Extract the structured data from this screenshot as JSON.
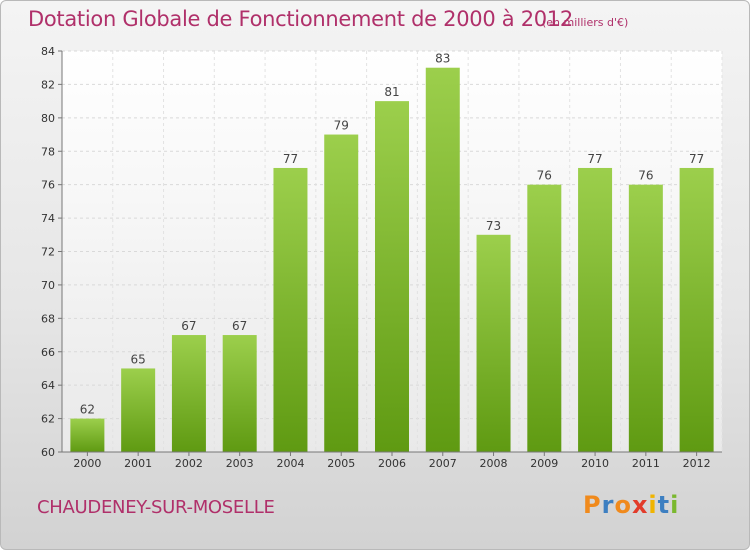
{
  "header": {
    "title": "Dotation Globale de Fonctionnement de 2000 à 2012",
    "subtitle": "(en milliers d'€)"
  },
  "footer": {
    "commune": "CHAUDENEY-SUR-MOSELLE",
    "logo_text": "Proxiti"
  },
  "colors": {
    "title": "#b0306a",
    "bar_top": "#9ccf4c",
    "bar_bottom": "#5f9a12",
    "logo_letters": [
      "#f08a1c",
      "#3d7fc1",
      "#f08a1c",
      "#e23b2a",
      "#f0b400",
      "#3d7fc1",
      "#7ab82e"
    ]
  },
  "chart_data": {
    "type": "bar",
    "categories": [
      "2000",
      "2001",
      "2002",
      "2003",
      "2004",
      "2005",
      "2006",
      "2007",
      "2008",
      "2009",
      "2010",
      "2011",
      "2012"
    ],
    "values": [
      62,
      65,
      67,
      67,
      77,
      79,
      81,
      83,
      73,
      76,
      77,
      76,
      77
    ],
    "ylim": [
      60,
      84
    ],
    "yticks": [
      60,
      62,
      64,
      66,
      68,
      70,
      72,
      74,
      76,
      78,
      80,
      82,
      84
    ],
    "grid": true,
    "xlabel": "",
    "ylabel": ""
  }
}
